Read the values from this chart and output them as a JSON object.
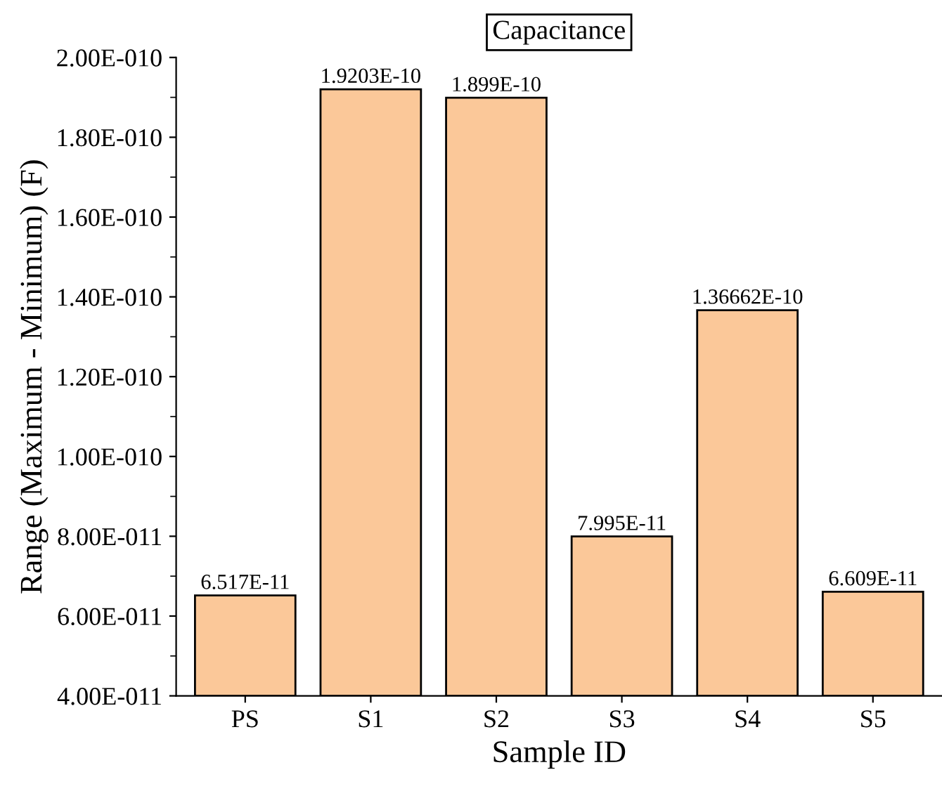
{
  "chart_data": {
    "type": "bar",
    "title": "Capacitance",
    "xlabel": "Sample ID",
    "ylabel": "Range (Maximum - Minimum) (F)",
    "categories": [
      "PS",
      "S1",
      "S2",
      "S3",
      "S4",
      "S5"
    ],
    "values": [
      6.517e-11,
      1.9203e-10,
      1.899e-10,
      7.995e-11,
      1.36662e-10,
      6.609e-11
    ],
    "value_labels": [
      "6.517E-11",
      "1.9203E-10",
      "1.899E-10",
      "7.995E-11",
      "1.36662E-10",
      "6.609E-11"
    ],
    "color": "#fbc899",
    "ylim": [
      4e-11,
      2e-10
    ],
    "yticks": [
      {
        "value": 4e-11,
        "label": "4.00E-011"
      },
      {
        "value": 6e-11,
        "label": "6.00E-011"
      },
      {
        "value": 8e-11,
        "label": "8.00E-011"
      },
      {
        "value": 1e-10,
        "label": "1.00E-010"
      },
      {
        "value": 1.2e-10,
        "label": "1.20E-010"
      },
      {
        "value": 1.4e-10,
        "label": "1.40E-010"
      },
      {
        "value": 1.6e-10,
        "label": "1.60E-010"
      },
      {
        "value": 1.8e-10,
        "label": "1.80E-010"
      },
      {
        "value": 2e-10,
        "label": "2.00E-010"
      }
    ],
    "grid": false,
    "legend": false
  }
}
